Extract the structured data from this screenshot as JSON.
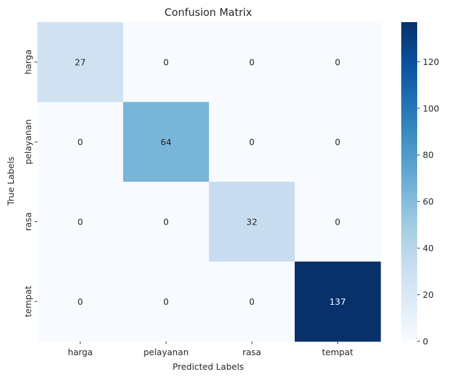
{
  "chart_data": {
    "type": "heatmap",
    "title": "Confusion Matrix",
    "xlabel": "Predicted Labels",
    "ylabel": "True Labels",
    "x_categories": [
      "harga",
      "pelayanan",
      "rasa",
      "tempat"
    ],
    "y_categories": [
      "harga",
      "pelayanan",
      "rasa",
      "tempat"
    ],
    "values": [
      [
        27,
        0,
        0,
        0
      ],
      [
        0,
        64,
        0,
        0
      ],
      [
        0,
        0,
        32,
        0
      ],
      [
        0,
        0,
        0,
        137
      ]
    ],
    "colormap": "Blues",
    "colorbar": {
      "range": [
        0,
        137
      ],
      "ticks": [
        0,
        20,
        40,
        60,
        80,
        100,
        120
      ]
    },
    "grid": false,
    "legend": "colorbar-right"
  }
}
